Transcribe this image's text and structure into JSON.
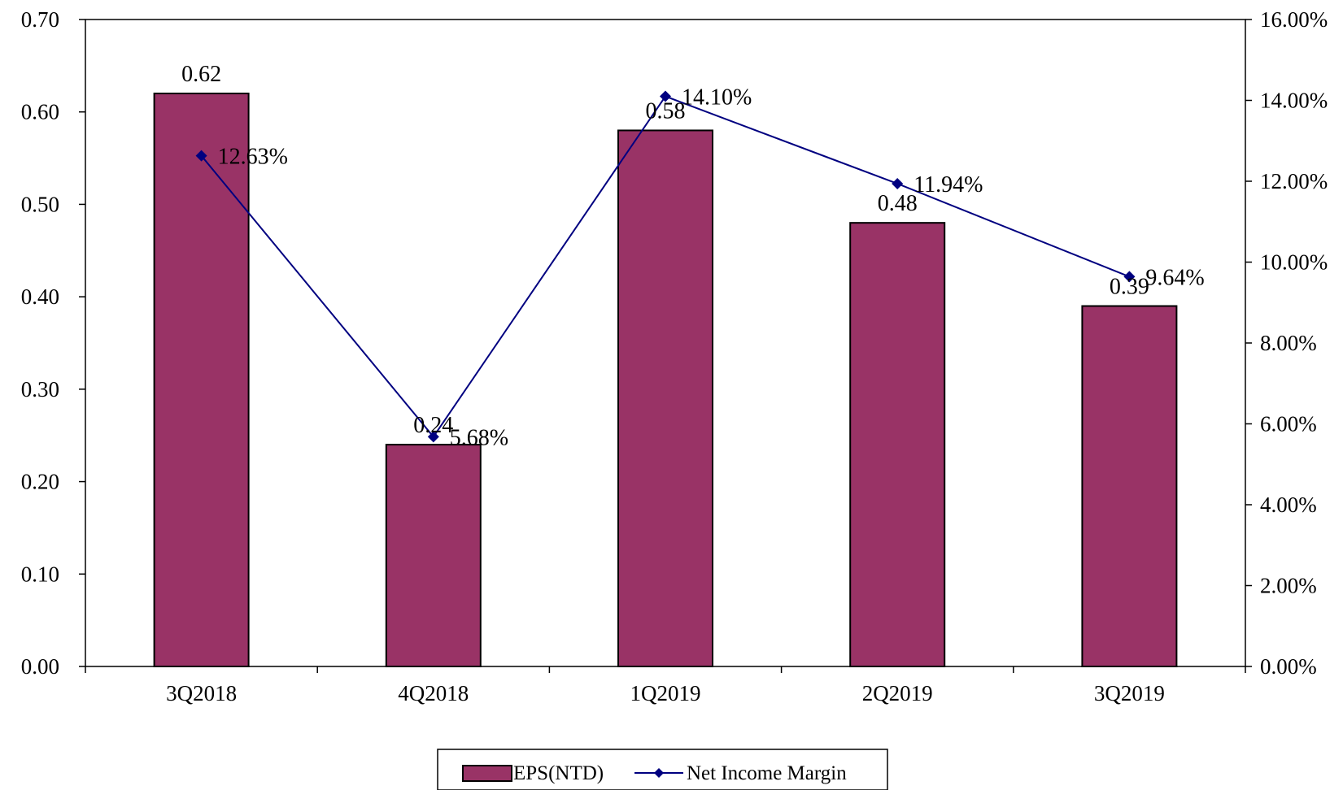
{
  "chart_data": {
    "type": "bar",
    "categories": [
      "3Q2018",
      "4Q2018",
      "1Q2019",
      "2Q2019",
      "3Q2019"
    ],
    "series": [
      {
        "name": "EPS(NTD)",
        "type": "bar",
        "axis": "left",
        "values": [
          0.62,
          0.24,
          0.58,
          0.48,
          0.39
        ],
        "labels": [
          "0.62",
          "0.24",
          "0.58",
          "0.48",
          "0.39"
        ],
        "color": "#993366"
      },
      {
        "name": "Net Income Margin",
        "type": "line",
        "axis": "right",
        "values": [
          12.63,
          5.68,
          14.1,
          11.94,
          9.64
        ],
        "labels": [
          "12.63%",
          "5.68%",
          "14.10%",
          "11.94%",
          "9.64%"
        ],
        "color": "#000080"
      }
    ],
    "y_left": {
      "ylim": [
        0,
        0.7
      ],
      "ticks": [
        "0.00",
        "0.10",
        "0.20",
        "0.30",
        "0.40",
        "0.50",
        "0.60",
        "0.70"
      ]
    },
    "y_right": {
      "ylim": [
        0,
        16
      ],
      "ticks": [
        "0.00%",
        "2.00%",
        "4.00%",
        "6.00%",
        "8.00%",
        "10.00%",
        "12.00%",
        "14.00%",
        "16.00%"
      ]
    },
    "grid": false,
    "legend": "bottom-center"
  }
}
